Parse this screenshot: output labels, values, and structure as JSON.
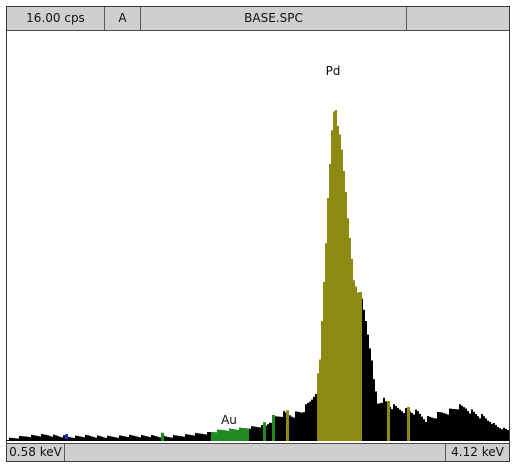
{
  "header": {
    "count_rate": "16.00 cps",
    "mode": "A",
    "filename": "BASE.SPC"
  },
  "footer": {
    "energy_start": "0.58 keV",
    "energy_end": "4.12 keV"
  },
  "peaks": [
    {
      "label": "Au"
    },
    {
      "label": "Pd"
    }
  ],
  "colors": {
    "background": "#ffffff",
    "spectrum": "#000000",
    "pd_roi": "#8c8a10",
    "au_roi": "#1f8a1f",
    "marker": "#1a2ec8",
    "bar": "#cfcfcf"
  }
}
